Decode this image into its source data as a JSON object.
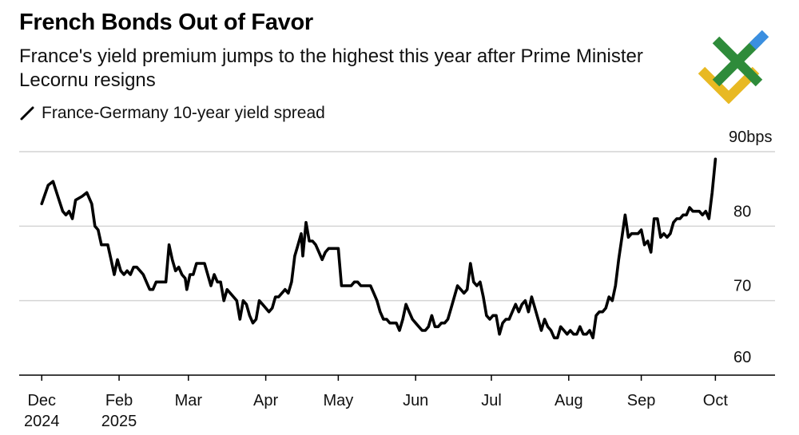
{
  "chart_data": {
    "type": "line",
    "title": "French Bonds Out of Favor",
    "subtitle": "France's yield premium jumps to the highest this year after Prime Minister Lecornu resigns",
    "series": [
      {
        "name": "France-Germany 10-year yield spread",
        "color": "#000000",
        "points": [
          [
            0.0,
            83.0
          ],
          [
            0.4,
            85.5
          ],
          [
            0.7,
            86.0
          ],
          [
            1.0,
            84.0
          ],
          [
            1.3,
            82.0
          ],
          [
            1.5,
            81.5
          ],
          [
            1.7,
            82.0
          ],
          [
            1.9,
            81.0
          ],
          [
            2.1,
            83.5
          ],
          [
            2.5,
            84.0
          ],
          [
            2.8,
            84.5
          ],
          [
            3.1,
            83.0
          ],
          [
            3.3,
            80.0
          ],
          [
            3.5,
            79.5
          ],
          [
            3.7,
            77.5
          ],
          [
            4.1,
            77.5
          ],
          [
            4.3,
            75.5
          ],
          [
            4.5,
            73.5
          ],
          [
            4.7,
            75.5
          ],
          [
            4.9,
            74.0
          ],
          [
            5.1,
            73.5
          ],
          [
            5.3,
            74.0
          ],
          [
            5.5,
            73.5
          ],
          [
            5.7,
            74.5
          ],
          [
            5.9,
            74.5
          ],
          [
            6.1,
            74.0
          ],
          [
            6.3,
            73.5
          ],
          [
            6.5,
            72.5
          ],
          [
            6.7,
            71.5
          ],
          [
            6.9,
            71.5
          ],
          [
            7.1,
            72.5
          ],
          [
            7.3,
            72.5
          ],
          [
            7.5,
            72.5
          ],
          [
            7.7,
            72.5
          ],
          [
            7.9,
            77.5
          ],
          [
            8.1,
            75.5
          ],
          [
            8.3,
            74.0
          ],
          [
            8.5,
            74.5
          ],
          [
            8.7,
            73.5
          ],
          [
            8.9,
            73.0
          ],
          [
            9.0,
            71.5
          ],
          [
            9.2,
            73.5
          ],
          [
            9.4,
            73.5
          ],
          [
            9.6,
            75.0
          ],
          [
            9.8,
            75.0
          ],
          [
            10.1,
            75.0
          ],
          [
            10.3,
            73.5
          ],
          [
            10.5,
            72.0
          ],
          [
            10.7,
            73.5
          ],
          [
            10.9,
            72.5
          ],
          [
            11.1,
            72.5
          ],
          [
            11.3,
            70.0
          ],
          [
            11.5,
            71.5
          ],
          [
            11.7,
            71.0
          ],
          [
            11.9,
            70.5
          ],
          [
            12.1,
            70.0
          ],
          [
            12.3,
            67.5
          ],
          [
            12.5,
            70.0
          ],
          [
            12.7,
            69.5
          ],
          [
            12.9,
            68.0
          ],
          [
            13.1,
            67.0
          ],
          [
            13.3,
            67.5
          ],
          [
            13.5,
            70.0
          ],
          [
            13.7,
            69.5
          ],
          [
            13.9,
            69.0
          ],
          [
            14.1,
            68.5
          ],
          [
            14.3,
            69.0
          ],
          [
            14.5,
            70.5
          ],
          [
            14.7,
            70.5
          ],
          [
            14.9,
            71.0
          ],
          [
            15.1,
            71.5
          ],
          [
            15.3,
            71.0
          ],
          [
            15.5,
            72.5
          ],
          [
            15.7,
            76.0
          ],
          [
            15.9,
            77.5
          ],
          [
            16.1,
            79.0
          ],
          [
            16.2,
            76.0
          ],
          [
            16.4,
            80.5
          ],
          [
            16.6,
            78.0
          ],
          [
            16.8,
            78.0
          ],
          [
            17.0,
            77.5
          ],
          [
            17.2,
            76.5
          ],
          [
            17.4,
            75.5
          ],
          [
            17.6,
            76.5
          ],
          [
            17.8,
            77.0
          ],
          [
            18.0,
            77.0
          ],
          [
            18.2,
            77.0
          ],
          [
            18.4,
            77.0
          ],
          [
            18.6,
            72.0
          ],
          [
            18.8,
            72.0
          ],
          [
            19.0,
            72.0
          ],
          [
            19.2,
            72.0
          ],
          [
            19.4,
            72.5
          ],
          [
            19.6,
            72.5
          ],
          [
            19.8,
            72.0
          ],
          [
            20.0,
            72.0
          ],
          [
            20.2,
            72.0
          ],
          [
            20.4,
            72.0
          ],
          [
            20.6,
            71.0
          ],
          [
            20.8,
            70.0
          ],
          [
            21.0,
            68.5
          ],
          [
            21.2,
            67.5
          ],
          [
            21.4,
            67.5
          ],
          [
            21.6,
            67.0
          ],
          [
            21.8,
            67.0
          ],
          [
            22.0,
            67.0
          ],
          [
            22.2,
            66.0
          ],
          [
            22.4,
            67.5
          ],
          [
            22.6,
            69.5
          ],
          [
            22.8,
            68.5
          ],
          [
            23.0,
            67.5
          ],
          [
            23.2,
            67.0
          ],
          [
            23.4,
            66.5
          ],
          [
            23.6,
            66.0
          ],
          [
            23.8,
            66.0
          ],
          [
            24.0,
            66.5
          ],
          [
            24.2,
            68.0
          ],
          [
            24.4,
            66.5
          ],
          [
            24.6,
            66.5
          ],
          [
            24.8,
            67.0
          ],
          [
            25.0,
            67.0
          ],
          [
            25.2,
            67.5
          ],
          [
            25.4,
            69.0
          ],
          [
            25.6,
            70.5
          ],
          [
            25.8,
            72.0
          ],
          [
            26.0,
            71.5
          ],
          [
            26.2,
            71.0
          ],
          [
            26.4,
            71.5
          ],
          [
            26.6,
            75.0
          ],
          [
            26.8,
            72.5
          ],
          [
            27.0,
            72.0
          ],
          [
            27.2,
            72.5
          ],
          [
            27.4,
            70.5
          ],
          [
            27.6,
            68.0
          ],
          [
            27.8,
            67.5
          ],
          [
            28.0,
            68.0
          ],
          [
            28.2,
            68.0
          ],
          [
            28.4,
            65.5
          ],
          [
            28.6,
            67.0
          ],
          [
            28.8,
            67.5
          ],
          [
            29.0,
            67.5
          ],
          [
            29.2,
            68.5
          ],
          [
            29.4,
            69.5
          ],
          [
            29.6,
            68.5
          ],
          [
            29.8,
            69.5
          ],
          [
            30.0,
            70.0
          ],
          [
            30.2,
            68.5
          ],
          [
            30.4,
            70.5
          ],
          [
            30.6,
            69.0
          ],
          [
            30.8,
            67.5
          ],
          [
            31.0,
            66.0
          ],
          [
            31.2,
            67.5
          ],
          [
            31.4,
            66.5
          ],
          [
            31.6,
            66.0
          ],
          [
            31.8,
            65.0
          ],
          [
            32.0,
            65.0
          ],
          [
            32.2,
            66.5
          ],
          [
            32.4,
            66.0
          ],
          [
            32.6,
            65.5
          ],
          [
            32.8,
            66.0
          ],
          [
            33.0,
            65.5
          ],
          [
            33.2,
            65.5
          ],
          [
            33.4,
            66.5
          ],
          [
            33.6,
            65.5
          ],
          [
            33.8,
            65.5
          ],
          [
            34.0,
            66.0
          ],
          [
            34.2,
            65.0
          ],
          [
            34.4,
            68.0
          ],
          [
            34.6,
            68.5
          ],
          [
            34.8,
            68.5
          ],
          [
            35.0,
            69.0
          ],
          [
            35.2,
            70.5
          ],
          [
            35.4,
            70.0
          ],
          [
            35.6,
            72.0
          ],
          [
            35.8,
            75.5
          ],
          [
            36.0,
            78.5
          ],
          [
            36.2,
            81.5
          ],
          [
            36.4,
            78.5
          ],
          [
            36.6,
            79.0
          ],
          [
            36.8,
            79.0
          ],
          [
            37.0,
            79.0
          ],
          [
            37.2,
            79.5
          ],
          [
            37.4,
            77.5
          ],
          [
            37.6,
            78.0
          ],
          [
            37.8,
            76.5
          ],
          [
            38.0,
            81.0
          ],
          [
            38.2,
            81.0
          ],
          [
            38.4,
            78.5
          ],
          [
            38.6,
            79.0
          ],
          [
            38.8,
            78.5
          ],
          [
            39.0,
            79.0
          ],
          [
            39.2,
            80.5
          ],
          [
            39.4,
            81.0
          ],
          [
            39.6,
            81.0
          ],
          [
            39.8,
            81.5
          ],
          [
            40.0,
            81.5
          ],
          [
            40.2,
            82.5
          ],
          [
            40.4,
            82.0
          ],
          [
            40.6,
            82.0
          ],
          [
            40.8,
            82.0
          ],
          [
            41.0,
            81.5
          ],
          [
            41.2,
            82.0
          ],
          [
            41.4,
            81.0
          ],
          [
            41.6,
            84.5
          ],
          [
            41.8,
            89.0
          ]
        ]
      }
    ],
    "x_axis": {
      "ticks": [
        {
          "x": 0,
          "label": "Dec",
          "sublabel": "2024"
        },
        {
          "x": 4.8,
          "label": "Feb",
          "sublabel": "2025"
        },
        {
          "x": 9.1,
          "label": "Mar",
          "sublabel": ""
        },
        {
          "x": 13.9,
          "label": "Apr",
          "sublabel": ""
        },
        {
          "x": 18.4,
          "label": "May",
          "sublabel": ""
        },
        {
          "x": 23.2,
          "label": "Jun",
          "sublabel": ""
        },
        {
          "x": 27.9,
          "label": "Jul",
          "sublabel": ""
        },
        {
          "x": 32.7,
          "label": "Aug",
          "sublabel": ""
        },
        {
          "x": 37.2,
          "label": "Sep",
          "sublabel": ""
        },
        {
          "x": 41.8,
          "label": "Oct",
          "sublabel": ""
        }
      ],
      "range": [
        -1.4,
        45.5
      ]
    },
    "y_axis": {
      "range": [
        60,
        90
      ],
      "ticks": [
        {
          "value": 90,
          "label": "90bps"
        },
        {
          "value": 80,
          "label": "80"
        },
        {
          "value": 70,
          "label": "70"
        },
        {
          "value": 60,
          "label": "60"
        }
      ],
      "grid": true,
      "side": "right"
    },
    "legend": {
      "position": "top-left",
      "entries": [
        "France-Germany 10-year yield spread"
      ]
    }
  },
  "logo": {
    "name": "watermark logo",
    "colors": [
      "#2e8b3a",
      "#3b8fe0",
      "#e8b923"
    ]
  }
}
